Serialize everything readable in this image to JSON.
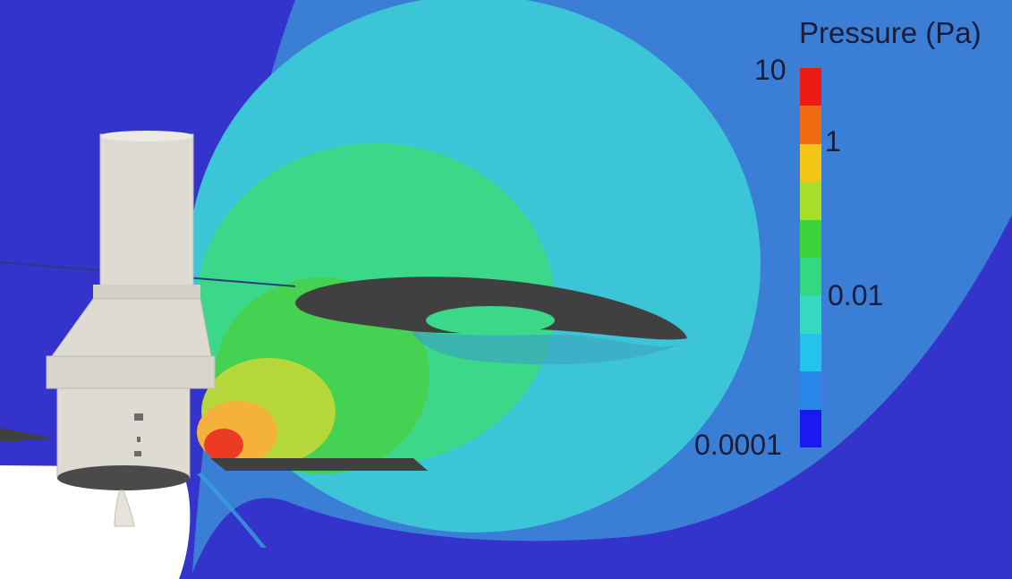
{
  "colorbar": {
    "title": "Pressure (Pa)",
    "tick_labels": [
      "10",
      "1",
      "0.01",
      "0.0001"
    ],
    "colors": [
      "#ee1a14",
      "#f06a12",
      "#f3c514",
      "#a6df2a",
      "#3ed33a",
      "#34d97f",
      "#35d9c4",
      "#23c3ee",
      "#2a86e8",
      "#1a1af0"
    ]
  },
  "field_colors": {
    "background": "#3434cc",
    "outer": "#3a7ed6",
    "mid": "#3cc5d6",
    "inner_green": "#3cd88a",
    "inner_green2": "#45d152",
    "yellow_green": "#b6d83a",
    "orange": "#f4b23a",
    "red": "#ec3a24",
    "spacecraft": "#dedcd2",
    "disk": "#404040"
  }
}
